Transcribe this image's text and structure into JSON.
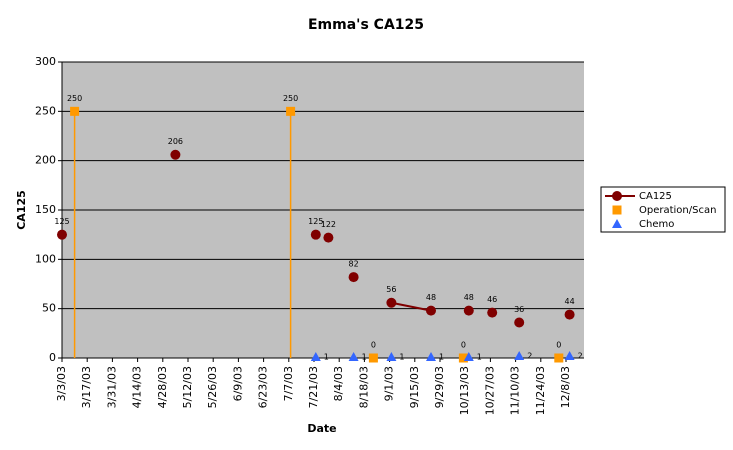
{
  "chart_data": {
    "type": "scatter",
    "title": "Emma's CA125",
    "x_label": "Date",
    "y_label": "CA125",
    "xlim": [
      "3/3/03",
      "12/18/03"
    ],
    "xticks": [
      "3/3/03",
      "3/17/03",
      "3/31/03",
      "4/14/03",
      "4/28/03",
      "5/12/03",
      "5/26/03",
      "6/9/03",
      "6/23/03",
      "7/7/03",
      "7/21/03",
      "8/4/03",
      "8/18/03",
      "9/1/03",
      "9/15/03",
      "9/29/03",
      "10/13/03",
      "10/27/03",
      "11/10/03",
      "11/24/03",
      "12/8/03"
    ],
    "ylim": [
      0,
      300
    ],
    "yticks": [
      0,
      50,
      100,
      150,
      200,
      250,
      300
    ],
    "grid": true,
    "legend": "right",
    "series": [
      {
        "name": "CA125",
        "color": "#800000",
        "marker": "circle",
        "line": true,
        "label_position": "above",
        "x": [
          "3/3/03",
          null,
          "5/5/03",
          null,
          "7/22/03",
          null,
          "7/29/03",
          null,
          "8/12/03",
          null,
          "9/2/03",
          "9/24/03",
          null,
          "10/15/03",
          null,
          "10/28/03",
          null,
          "11/12/03",
          null,
          "12/10/03"
        ],
        "values": [
          125,
          null,
          206,
          null,
          125,
          null,
          122,
          null,
          82,
          null,
          56,
          48,
          null,
          48,
          null,
          46,
          null,
          36,
          null,
          44
        ]
      },
      {
        "name": "Operation/Scan",
        "color": "#ff9900",
        "marker": "square",
        "drop_lines": true,
        "label_position": "above",
        "x": [
          "3/10/03",
          "7/8/03",
          "8/23/03",
          "10/12/03",
          "12/4/03"
        ],
        "values": [
          250,
          250,
          0,
          0,
          0
        ]
      },
      {
        "name": "Chemo",
        "color": "#3366ff",
        "marker": "triangle",
        "label_position": "right",
        "x": [
          "7/22/03",
          "8/12/03",
          "9/2/03",
          "9/24/03",
          "10/15/03",
          "11/12/03",
          "12/10/03"
        ],
        "values": [
          1,
          1,
          1,
          1,
          1,
          2,
          2
        ]
      }
    ]
  }
}
